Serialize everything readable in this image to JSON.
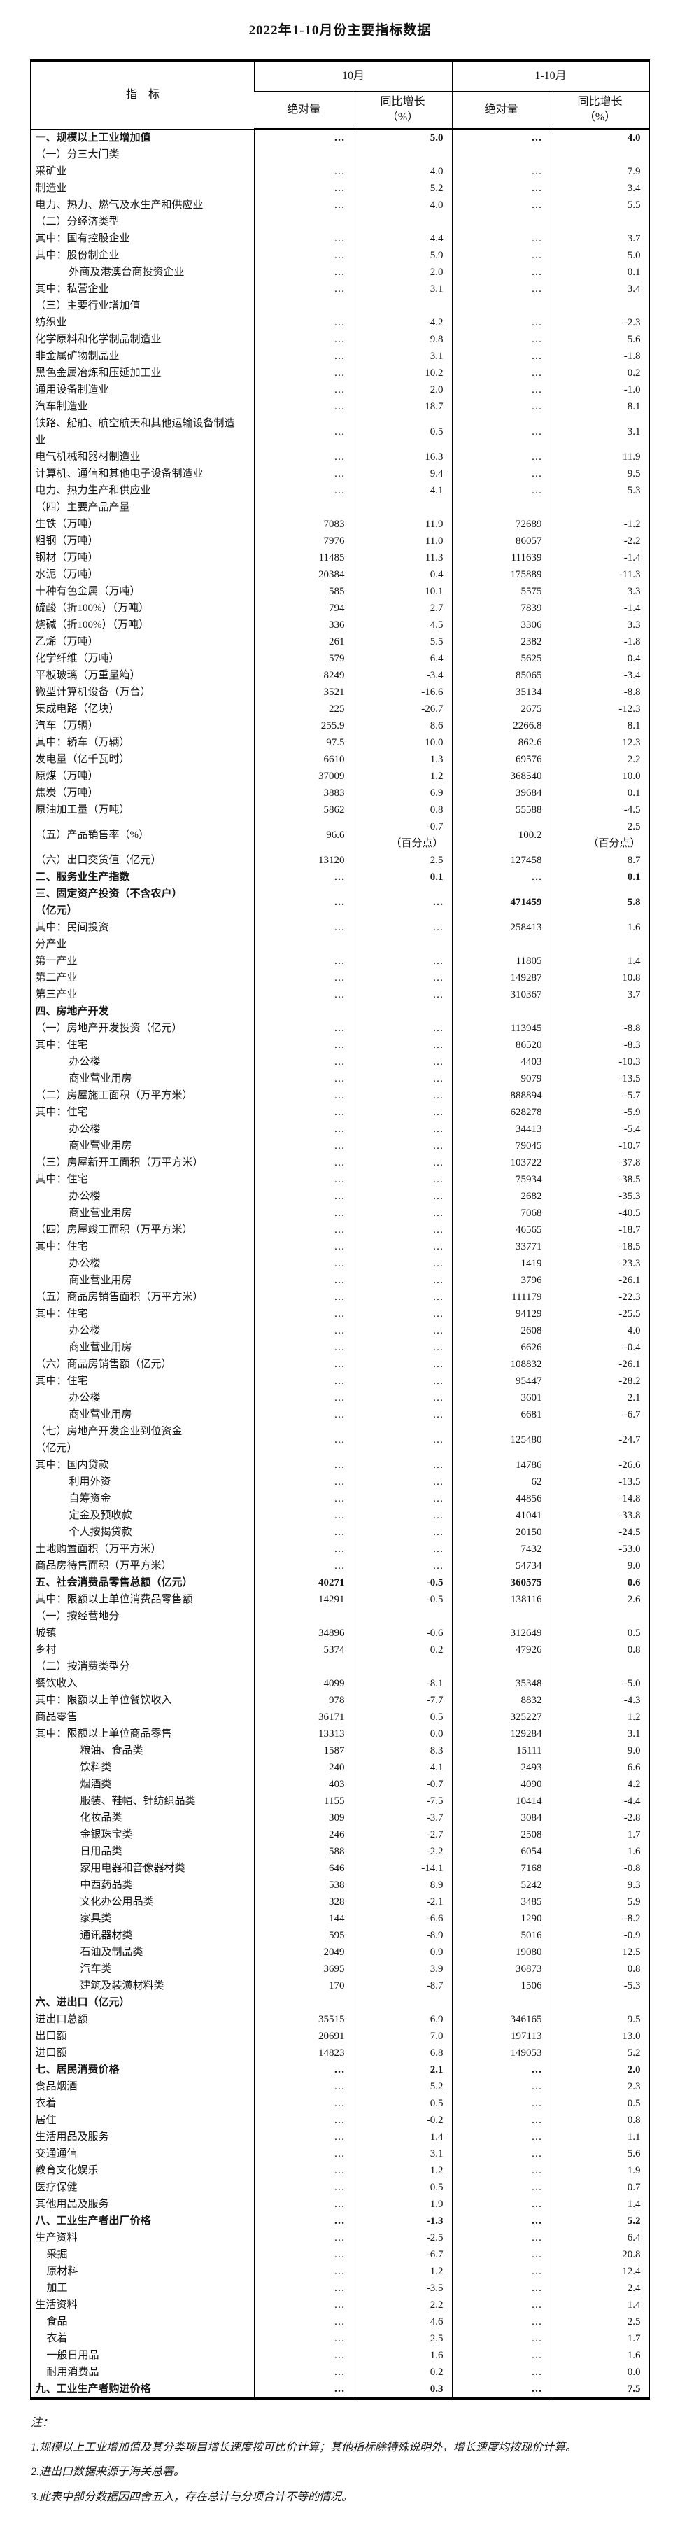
{
  "title": "2022年1-10月份主要指标数据",
  "table": {
    "header": {
      "indicator": "指　标",
      "col_groups": [
        "10月",
        "1-10月"
      ],
      "sub_cols": [
        "绝对量",
        "同比增长\n（%）",
        "绝对量",
        "同比增长\n（%）"
      ]
    },
    "rows": [
      {
        "l": "一、规模以上工业增加值",
        "b": 1,
        "v": [
          "…",
          "5.0",
          "…",
          "4.0"
        ]
      },
      {
        "l": "（一）分三大门类",
        "v": [
          "",
          "",
          "",
          ""
        ]
      },
      {
        "l": "采矿业",
        "v": [
          "…",
          "4.0",
          "…",
          "7.9"
        ]
      },
      {
        "l": "制造业",
        "v": [
          "…",
          "5.2",
          "…",
          "3.4"
        ]
      },
      {
        "l": "电力、热力、燃气及水生产和供应业",
        "v": [
          "…",
          "4.0",
          "…",
          "5.5"
        ]
      },
      {
        "l": "（二）分经济类型",
        "v": [
          "",
          "",
          "",
          ""
        ]
      },
      {
        "l": "其中：国有控股企业",
        "v": [
          "…",
          "4.4",
          "…",
          "3.7"
        ]
      },
      {
        "l": "其中：股份制企业",
        "v": [
          "…",
          "5.9",
          "…",
          "5.0"
        ]
      },
      {
        "l": "外商及港澳台商投资企业",
        "i": 3,
        "v": [
          "…",
          "2.0",
          "…",
          "0.1"
        ]
      },
      {
        "l": "其中：私营企业",
        "v": [
          "…",
          "3.1",
          "…",
          "3.4"
        ]
      },
      {
        "l": "（三）主要行业增加值",
        "v": [
          "",
          "",
          "",
          ""
        ]
      },
      {
        "l": "纺织业",
        "v": [
          "…",
          "-4.2",
          "…",
          "-2.3"
        ]
      },
      {
        "l": "化学原料和化学制品制造业",
        "v": [
          "…",
          "9.8",
          "…",
          "5.6"
        ]
      },
      {
        "l": "非金属矿物制品业",
        "v": [
          "…",
          "3.1",
          "…",
          "-1.8"
        ]
      },
      {
        "l": "黑色金属冶炼和压延加工业",
        "v": [
          "…",
          "10.2",
          "…",
          "0.2"
        ]
      },
      {
        "l": "通用设备制造业",
        "v": [
          "…",
          "2.0",
          "…",
          "-1.0"
        ]
      },
      {
        "l": "汽车制造业",
        "v": [
          "…",
          "18.7",
          "…",
          "8.1"
        ]
      },
      {
        "l": "铁路、船舶、航空航天和其他运输设备制造\n业",
        "v": [
          "…",
          "0.5",
          "…",
          "3.1"
        ]
      },
      {
        "l": "电气机械和器材制造业",
        "v": [
          "…",
          "16.3",
          "…",
          "11.9"
        ]
      },
      {
        "l": "计算机、通信和其他电子设备制造业",
        "v": [
          "…",
          "9.4",
          "…",
          "9.5"
        ]
      },
      {
        "l": "电力、热力生产和供应业",
        "v": [
          "…",
          "4.1",
          "…",
          "5.3"
        ]
      },
      {
        "l": "（四）主要产品产量",
        "v": [
          "",
          "",
          "",
          ""
        ]
      },
      {
        "l": "生铁（万吨）",
        "v": [
          "7083",
          "11.9",
          "72689",
          "-1.2"
        ]
      },
      {
        "l": "粗钢（万吨）",
        "v": [
          "7976",
          "11.0",
          "86057",
          "-2.2"
        ]
      },
      {
        "l": "钢材（万吨）",
        "v": [
          "11485",
          "11.3",
          "111639",
          "-1.4"
        ]
      },
      {
        "l": "水泥（万吨）",
        "v": [
          "20384",
          "0.4",
          "175889",
          "-11.3"
        ]
      },
      {
        "l": "十种有色金属（万吨）",
        "v": [
          "585",
          "10.1",
          "5575",
          "3.3"
        ]
      },
      {
        "l": "硫酸（折100%）（万吨）",
        "v": [
          "794",
          "2.7",
          "7839",
          "-1.4"
        ]
      },
      {
        "l": "烧碱（折100%）（万吨）",
        "v": [
          "336",
          "4.5",
          "3306",
          "3.3"
        ]
      },
      {
        "l": "乙烯（万吨）",
        "v": [
          "261",
          "5.5",
          "2382",
          "-1.8"
        ]
      },
      {
        "l": "化学纤维（万吨）",
        "v": [
          "579",
          "6.4",
          "5625",
          "0.4"
        ]
      },
      {
        "l": "平板玻璃（万重量箱）",
        "v": [
          "8249",
          "-3.4",
          "85065",
          "-3.4"
        ]
      },
      {
        "l": "微型计算机设备（万台）",
        "v": [
          "3521",
          "-16.6",
          "35134",
          "-8.8"
        ]
      },
      {
        "l": "集成电路（亿块）",
        "v": [
          "225",
          "-26.7",
          "2675",
          "-12.3"
        ]
      },
      {
        "l": "汽车（万辆）",
        "v": [
          "255.9",
          "8.6",
          "2266.8",
          "8.1"
        ]
      },
      {
        "l": "其中：轿车（万辆）",
        "v": [
          "97.5",
          "10.0",
          "862.6",
          "12.3"
        ]
      },
      {
        "l": "发电量（亿千瓦时）",
        "v": [
          "6610",
          "1.3",
          "69576",
          "2.2"
        ]
      },
      {
        "l": "原煤（万吨）",
        "v": [
          "37009",
          "1.2",
          "368540",
          "10.0"
        ]
      },
      {
        "l": "焦炭（万吨）",
        "v": [
          "3883",
          "6.9",
          "39684",
          "0.1"
        ]
      },
      {
        "l": "原油加工量（万吨）",
        "v": [
          "5862",
          "0.8",
          "55588",
          "-4.5"
        ]
      },
      {
        "l": "（五）产品销售率（%）",
        "v": [
          "96.6",
          "-0.7\n（百分点）",
          "100.2",
          "2.5\n（百分点）"
        ]
      },
      {
        "l": "（六）出口交货值（亿元）",
        "v": [
          "13120",
          "2.5",
          "127458",
          "8.7"
        ]
      },
      {
        "l": "二、服务业生产指数",
        "b": 1,
        "v": [
          "…",
          "0.1",
          "…",
          "0.1"
        ]
      },
      {
        "l": "三、固定资产投资（不含农户）\n（亿元）",
        "b": 1,
        "v": [
          "…",
          "…",
          "471459",
          "5.8"
        ]
      },
      {
        "l": "其中：民间投资",
        "v": [
          "…",
          "…",
          "258413",
          "1.6"
        ]
      },
      {
        "l": "分产业",
        "v": [
          "",
          "",
          "",
          ""
        ]
      },
      {
        "l": "第一产业",
        "v": [
          "…",
          "…",
          "11805",
          "1.4"
        ]
      },
      {
        "l": "第二产业",
        "v": [
          "…",
          "…",
          "149287",
          "10.8"
        ]
      },
      {
        "l": "第三产业",
        "v": [
          "…",
          "…",
          "310367",
          "3.7"
        ]
      },
      {
        "l": "四、房地产开发",
        "b": 1,
        "v": [
          "",
          "",
          "",
          ""
        ]
      },
      {
        "l": "（一）房地产开发投资（亿元）",
        "v": [
          "…",
          "…",
          "113945",
          "-8.8"
        ]
      },
      {
        "l": "其中：住宅",
        "v": [
          "…",
          "…",
          "86520",
          "-8.3"
        ]
      },
      {
        "l": "办公楼",
        "i": 3,
        "v": [
          "…",
          "…",
          "4403",
          "-10.3"
        ]
      },
      {
        "l": "商业营业用房",
        "i": 3,
        "v": [
          "…",
          "…",
          "9079",
          "-13.5"
        ]
      },
      {
        "l": "（二）房屋施工面积（万平方米）",
        "v": [
          "…",
          "…",
          "888894",
          "-5.7"
        ]
      },
      {
        "l": "其中：住宅",
        "v": [
          "…",
          "…",
          "628278",
          "-5.9"
        ]
      },
      {
        "l": "办公楼",
        "i": 3,
        "v": [
          "…",
          "…",
          "34413",
          "-5.4"
        ]
      },
      {
        "l": "商业营业用房",
        "i": 3,
        "v": [
          "…",
          "…",
          "79045",
          "-10.7"
        ]
      },
      {
        "l": "（三）房屋新开工面积（万平方米）",
        "v": [
          "…",
          "…",
          "103722",
          "-37.8"
        ]
      },
      {
        "l": "其中：住宅",
        "v": [
          "…",
          "…",
          "75934",
          "-38.5"
        ]
      },
      {
        "l": "办公楼",
        "i": 3,
        "v": [
          "…",
          "…",
          "2682",
          "-35.3"
        ]
      },
      {
        "l": "商业营业用房",
        "i": 3,
        "v": [
          "…",
          "…",
          "7068",
          "-40.5"
        ]
      },
      {
        "l": "（四）房屋竣工面积（万平方米）",
        "v": [
          "…",
          "…",
          "46565",
          "-18.7"
        ]
      },
      {
        "l": "其中：住宅",
        "v": [
          "…",
          "…",
          "33771",
          "-18.5"
        ]
      },
      {
        "l": "办公楼",
        "i": 3,
        "v": [
          "…",
          "…",
          "1419",
          "-23.3"
        ]
      },
      {
        "l": "商业营业用房",
        "i": 3,
        "v": [
          "…",
          "…",
          "3796",
          "-26.1"
        ]
      },
      {
        "l": "（五）商品房销售面积（万平方米）",
        "v": [
          "…",
          "…",
          "111179",
          "-22.3"
        ]
      },
      {
        "l": "其中：住宅",
        "v": [
          "…",
          "…",
          "94129",
          "-25.5"
        ]
      },
      {
        "l": "办公楼",
        "i": 3,
        "v": [
          "…",
          "…",
          "2608",
          "4.0"
        ]
      },
      {
        "l": "商业营业用房",
        "i": 3,
        "v": [
          "…",
          "…",
          "6626",
          "-0.4"
        ]
      },
      {
        "l": "（六）商品房销售额（亿元）",
        "v": [
          "…",
          "…",
          "108832",
          "-26.1"
        ]
      },
      {
        "l": "其中：住宅",
        "v": [
          "…",
          "…",
          "95447",
          "-28.2"
        ]
      },
      {
        "l": "办公楼",
        "i": 3,
        "v": [
          "…",
          "…",
          "3601",
          "2.1"
        ]
      },
      {
        "l": "商业营业用房",
        "i": 3,
        "v": [
          "…",
          "…",
          "6681",
          "-6.7"
        ]
      },
      {
        "l": "（七）房地产开发企业到位资金\n（亿元）",
        "v": [
          "…",
          "…",
          "125480",
          "-24.7"
        ]
      },
      {
        "l": "其中：国内贷款",
        "v": [
          "…",
          "…",
          "14786",
          "-26.6"
        ]
      },
      {
        "l": "利用外资",
        "i": 3,
        "v": [
          "…",
          "…",
          "62",
          "-13.5"
        ]
      },
      {
        "l": "自筹资金",
        "i": 3,
        "v": [
          "…",
          "…",
          "44856",
          "-14.8"
        ]
      },
      {
        "l": "定金及预收款",
        "i": 3,
        "v": [
          "…",
          "…",
          "41041",
          "-33.8"
        ]
      },
      {
        "l": "个人按揭贷款",
        "i": 3,
        "v": [
          "…",
          "…",
          "20150",
          "-24.5"
        ]
      },
      {
        "l": "土地购置面积（万平方米）",
        "v": [
          "…",
          "…",
          "7432",
          "-53.0"
        ]
      },
      {
        "l": "商品房待售面积（万平方米）",
        "v": [
          "…",
          "…",
          "54734",
          "9.0"
        ]
      },
      {
        "l": "五、社会消费品零售总额（亿元）",
        "b": 1,
        "v": [
          "40271",
          "-0.5",
          "360575",
          "0.6"
        ]
      },
      {
        "l": "其中：限额以上单位消费品零售额",
        "v": [
          "14291",
          "-0.5",
          "138116",
          "2.6"
        ]
      },
      {
        "l": "（一）按经营地分",
        "v": [
          "",
          "",
          "",
          ""
        ]
      },
      {
        "l": "城镇",
        "v": [
          "34896",
          "-0.6",
          "312649",
          "0.5"
        ]
      },
      {
        "l": "乡村",
        "v": [
          "5374",
          "0.2",
          "47926",
          "0.8"
        ]
      },
      {
        "l": "（二）按消费类型分",
        "v": [
          "",
          "",
          "",
          ""
        ]
      },
      {
        "l": "餐饮收入",
        "v": [
          "4099",
          "-8.1",
          "35348",
          "-5.0"
        ]
      },
      {
        "l": "其中：限额以上单位餐饮收入",
        "v": [
          "978",
          "-7.7",
          "8832",
          "-4.3"
        ]
      },
      {
        "l": "商品零售",
        "v": [
          "36171",
          "0.5",
          "325227",
          "1.2"
        ]
      },
      {
        "l": "其中：限额以上单位商品零售",
        "v": [
          "13313",
          "0.0",
          "129284",
          "3.1"
        ]
      },
      {
        "l": "粮油、食品类",
        "i": 4,
        "v": [
          "1587",
          "8.3",
          "15111",
          "9.0"
        ]
      },
      {
        "l": "饮料类",
        "i": 4,
        "v": [
          "240",
          "4.1",
          "2493",
          "6.6"
        ]
      },
      {
        "l": "烟酒类",
        "i": 4,
        "v": [
          "403",
          "-0.7",
          "4090",
          "4.2"
        ]
      },
      {
        "l": "服装、鞋帽、针纺织品类",
        "i": 4,
        "v": [
          "1155",
          "-7.5",
          "10414",
          "-4.4"
        ]
      },
      {
        "l": "化妆品类",
        "i": 4,
        "v": [
          "309",
          "-3.7",
          "3084",
          "-2.8"
        ]
      },
      {
        "l": "金银珠宝类",
        "i": 4,
        "v": [
          "246",
          "-2.7",
          "2508",
          "1.7"
        ]
      },
      {
        "l": "日用品类",
        "i": 4,
        "v": [
          "588",
          "-2.2",
          "6054",
          "1.6"
        ]
      },
      {
        "l": "家用电器和音像器材类",
        "i": 4,
        "v": [
          "646",
          "-14.1",
          "7168",
          "-0.8"
        ]
      },
      {
        "l": "中西药品类",
        "i": 4,
        "v": [
          "538",
          "8.9",
          "5242",
          "9.3"
        ]
      },
      {
        "l": "文化办公用品类",
        "i": 4,
        "v": [
          "328",
          "-2.1",
          "3485",
          "5.9"
        ]
      },
      {
        "l": "家具类",
        "i": 4,
        "v": [
          "144",
          "-6.6",
          "1290",
          "-8.2"
        ]
      },
      {
        "l": "通讯器材类",
        "i": 4,
        "v": [
          "595",
          "-8.9",
          "5016",
          "-0.9"
        ]
      },
      {
        "l": "石油及制品类",
        "i": 4,
        "v": [
          "2049",
          "0.9",
          "19080",
          "12.5"
        ]
      },
      {
        "l": "汽车类",
        "i": 4,
        "v": [
          "3695",
          "3.9",
          "36873",
          "0.8"
        ]
      },
      {
        "l": "建筑及装潢材料类",
        "i": 4,
        "v": [
          "170",
          "-8.7",
          "1506",
          "-5.3"
        ]
      },
      {
        "l": "六、进出口（亿元）",
        "b": 1,
        "v": [
          "",
          "",
          "",
          ""
        ]
      },
      {
        "l": "进出口总额",
        "v": [
          "35515",
          "6.9",
          "346165",
          "9.5"
        ]
      },
      {
        "l": "出口额",
        "v": [
          "20691",
          "7.0",
          "197113",
          "13.0"
        ]
      },
      {
        "l": "进口额",
        "v": [
          "14823",
          "6.8",
          "149053",
          "5.2"
        ]
      },
      {
        "l": "七、居民消费价格",
        "b": 1,
        "v": [
          "…",
          "2.1",
          "…",
          "2.0"
        ]
      },
      {
        "l": "食品烟酒",
        "v": [
          "…",
          "5.2",
          "…",
          "2.3"
        ]
      },
      {
        "l": "衣着",
        "v": [
          "…",
          "0.5",
          "…",
          "0.5"
        ]
      },
      {
        "l": "居住",
        "v": [
          "…",
          "-0.2",
          "…",
          "0.8"
        ]
      },
      {
        "l": "生活用品及服务",
        "v": [
          "…",
          "1.4",
          "…",
          "1.1"
        ]
      },
      {
        "l": "交通通信",
        "v": [
          "…",
          "3.1",
          "…",
          "5.6"
        ]
      },
      {
        "l": "教育文化娱乐",
        "v": [
          "…",
          "1.2",
          "…",
          "1.9"
        ]
      },
      {
        "l": "医疗保健",
        "v": [
          "…",
          "0.5",
          "…",
          "0.7"
        ]
      },
      {
        "l": "其他用品及服务",
        "v": [
          "…",
          "1.9",
          "…",
          "1.4"
        ]
      },
      {
        "l": "八、工业生产者出厂价格",
        "b": 1,
        "v": [
          "…",
          "-1.3",
          "…",
          "5.2"
        ]
      },
      {
        "l": "生产资料",
        "v": [
          "…",
          "-2.5",
          "…",
          "6.4"
        ]
      },
      {
        "l": "采掘",
        "i": 1,
        "v": [
          "…",
          "-6.7",
          "…",
          "20.8"
        ]
      },
      {
        "l": "原材料",
        "i": 1,
        "v": [
          "…",
          "1.2",
          "…",
          "12.4"
        ]
      },
      {
        "l": "加工",
        "i": 1,
        "v": [
          "…",
          "-3.5",
          "…",
          "2.4"
        ]
      },
      {
        "l": "生活资料",
        "v": [
          "…",
          "2.2",
          "…",
          "1.4"
        ]
      },
      {
        "l": "食品",
        "i": 1,
        "v": [
          "…",
          "4.6",
          "…",
          "2.5"
        ]
      },
      {
        "l": "衣着",
        "i": 1,
        "v": [
          "…",
          "2.5",
          "…",
          "1.7"
        ]
      },
      {
        "l": "一般日用品",
        "i": 1,
        "v": [
          "…",
          "1.6",
          "…",
          "1.6"
        ]
      },
      {
        "l": "耐用消费品",
        "i": 1,
        "v": [
          "…",
          "0.2",
          "…",
          "0.0"
        ]
      },
      {
        "l": "九、工业生产者购进价格",
        "b": 1,
        "v": [
          "…",
          "0.3",
          "…",
          "7.5"
        ]
      }
    ]
  },
  "notes": {
    "label": "注：",
    "items": [
      "1.规模以上工业增加值及其分类项目增长速度按可比价计算；其他指标除特殊说明外，增长速度均按现价计算。",
      "2.进出口数据来源于海关总署。",
      "3.此表中部分数据因四舍五入，存在总计与分项合计不等的情况。"
    ]
  }
}
